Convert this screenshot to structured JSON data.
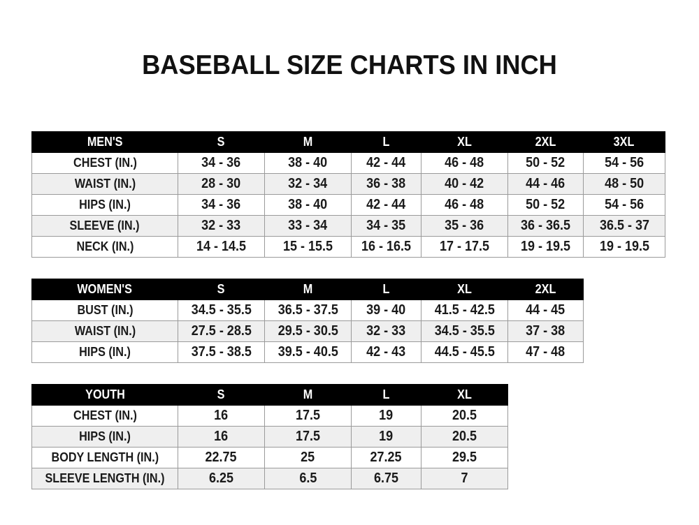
{
  "title": "BASEBALL SIZE CHARTS IN INCH",
  "colors": {
    "header_bg": "#000000",
    "header_text": "#ffffff",
    "alt_row": "#efefef",
    "border": "#9a9a9a"
  },
  "tables": [
    {
      "id": "mens",
      "headers": [
        "MEN'S",
        "S",
        "M",
        "L",
        "XL",
        "2XL",
        "3XL"
      ],
      "rows": [
        [
          "CHEST (IN.)",
          "34 - 36",
          "38 - 40",
          "42 - 44",
          "46 - 48",
          "50 - 52",
          "54 - 56"
        ],
        [
          "WAIST (IN.)",
          "28 - 30",
          "32 - 34",
          "36 - 38",
          "40 - 42",
          "44 - 46",
          "48 - 50"
        ],
        [
          "HIPS (IN.)",
          "34 - 36",
          "38 - 40",
          "42 - 44",
          "46 - 48",
          "50 - 52",
          "54 - 56"
        ],
        [
          "SLEEVE (IN.)",
          "32 - 33",
          "33 - 34",
          "34 - 35",
          "35 - 36",
          "36 - 36.5",
          "36.5 - 37"
        ],
        [
          "NECK (IN.)",
          "14 - 14.5",
          "15 - 15.5",
          "16 - 16.5",
          "17 - 17.5",
          "19 - 19.5",
          "19 - 19.5"
        ]
      ]
    },
    {
      "id": "womens",
      "headers": [
        "WOMEN'S",
        "S",
        "M",
        "L",
        "XL",
        "2XL"
      ],
      "rows": [
        [
          "BUST (IN.)",
          "34.5 - 35.5",
          "36.5 - 37.5",
          "39 - 40",
          "41.5 - 42.5",
          "44 - 45"
        ],
        [
          "WAIST (IN.)",
          "27.5 - 28.5",
          "29.5 - 30.5",
          "32 - 33",
          "34.5 - 35.5",
          "37 - 38"
        ],
        [
          "HIPS (IN.)",
          "37.5 - 38.5",
          "39.5 - 40.5",
          "42 - 43",
          "44.5 - 45.5",
          "47 - 48"
        ]
      ]
    },
    {
      "id": "youth",
      "headers": [
        "YOUTH",
        "S",
        "M",
        "L",
        "XL"
      ],
      "rows": [
        [
          "CHEST (IN.)",
          "16",
          "17.5",
          "19",
          "20.5"
        ],
        [
          "HIPS (IN.)",
          "16",
          "17.5",
          "19",
          "20.5"
        ],
        [
          "BODY LENGTH (IN.)",
          "22.75",
          "25",
          "27.25",
          "29.5"
        ],
        [
          "SLEEVE LENGTH (IN.)",
          "6.25",
          "6.5",
          "6.75",
          "7"
        ]
      ]
    }
  ]
}
